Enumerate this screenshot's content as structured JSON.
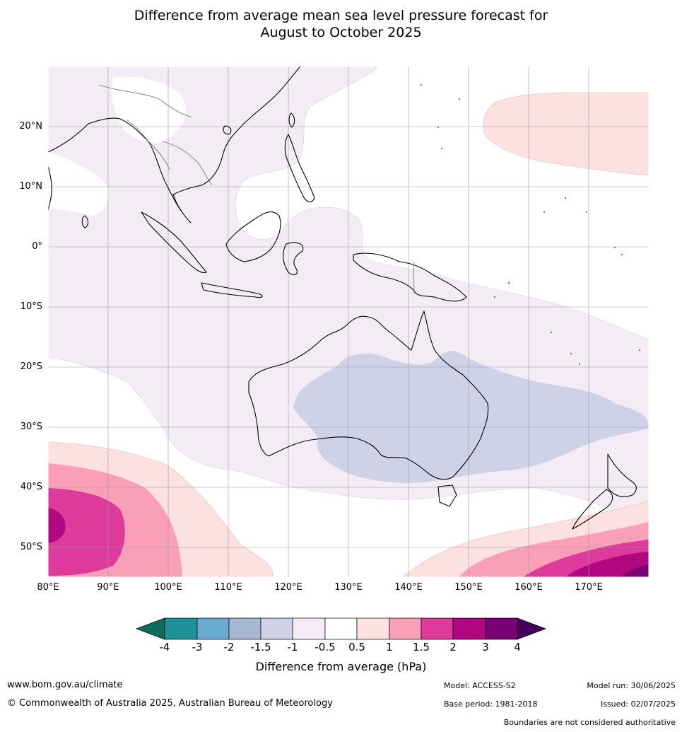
{
  "title_line1": "Difference from average mean sea level pressure forecast for",
  "title_line2": "August to October 2025",
  "lat_labels": [
    "20°N",
    "10°N",
    "0°",
    "10°S",
    "20°S",
    "30°S",
    "40°S",
    "50°S"
  ],
  "lon_labels": [
    "80°E",
    "90°E",
    "100°E",
    "110°E",
    "120°E",
    "130°E",
    "140°E",
    "150°E",
    "160°E",
    "170°E"
  ],
  "colorbar": {
    "title": "Difference from average (hPa)",
    "ticks": [
      "-4",
      "-3",
      "-2",
      "-1.5",
      "-1",
      "-0.5",
      "0.5",
      "1",
      "1.5",
      "2",
      "3",
      "4"
    ],
    "colors": [
      "#0f6b5c",
      "#1d9399",
      "#69abd1",
      "#a8b8d4",
      "#cfd1e6",
      "#f3ecf5",
      "#ffffff",
      "#fde0e0",
      "#f9a0b8",
      "#de3a9c",
      "#b10780",
      "#7a0175",
      "#45005e"
    ]
  },
  "footer": {
    "website": "www.bom.gov.au/climate",
    "copyright": "© Commonwealth of Australia 2025, Australian Bureau of Meteorology",
    "model": "Model: ACCESS-S2",
    "base_period": "Base period: 1981-2018",
    "model_run": "Model run: 30/06/2025",
    "issued": "Issued: 02/07/2025",
    "disclaimer": "Boundaries are not considered authoritative"
  }
}
